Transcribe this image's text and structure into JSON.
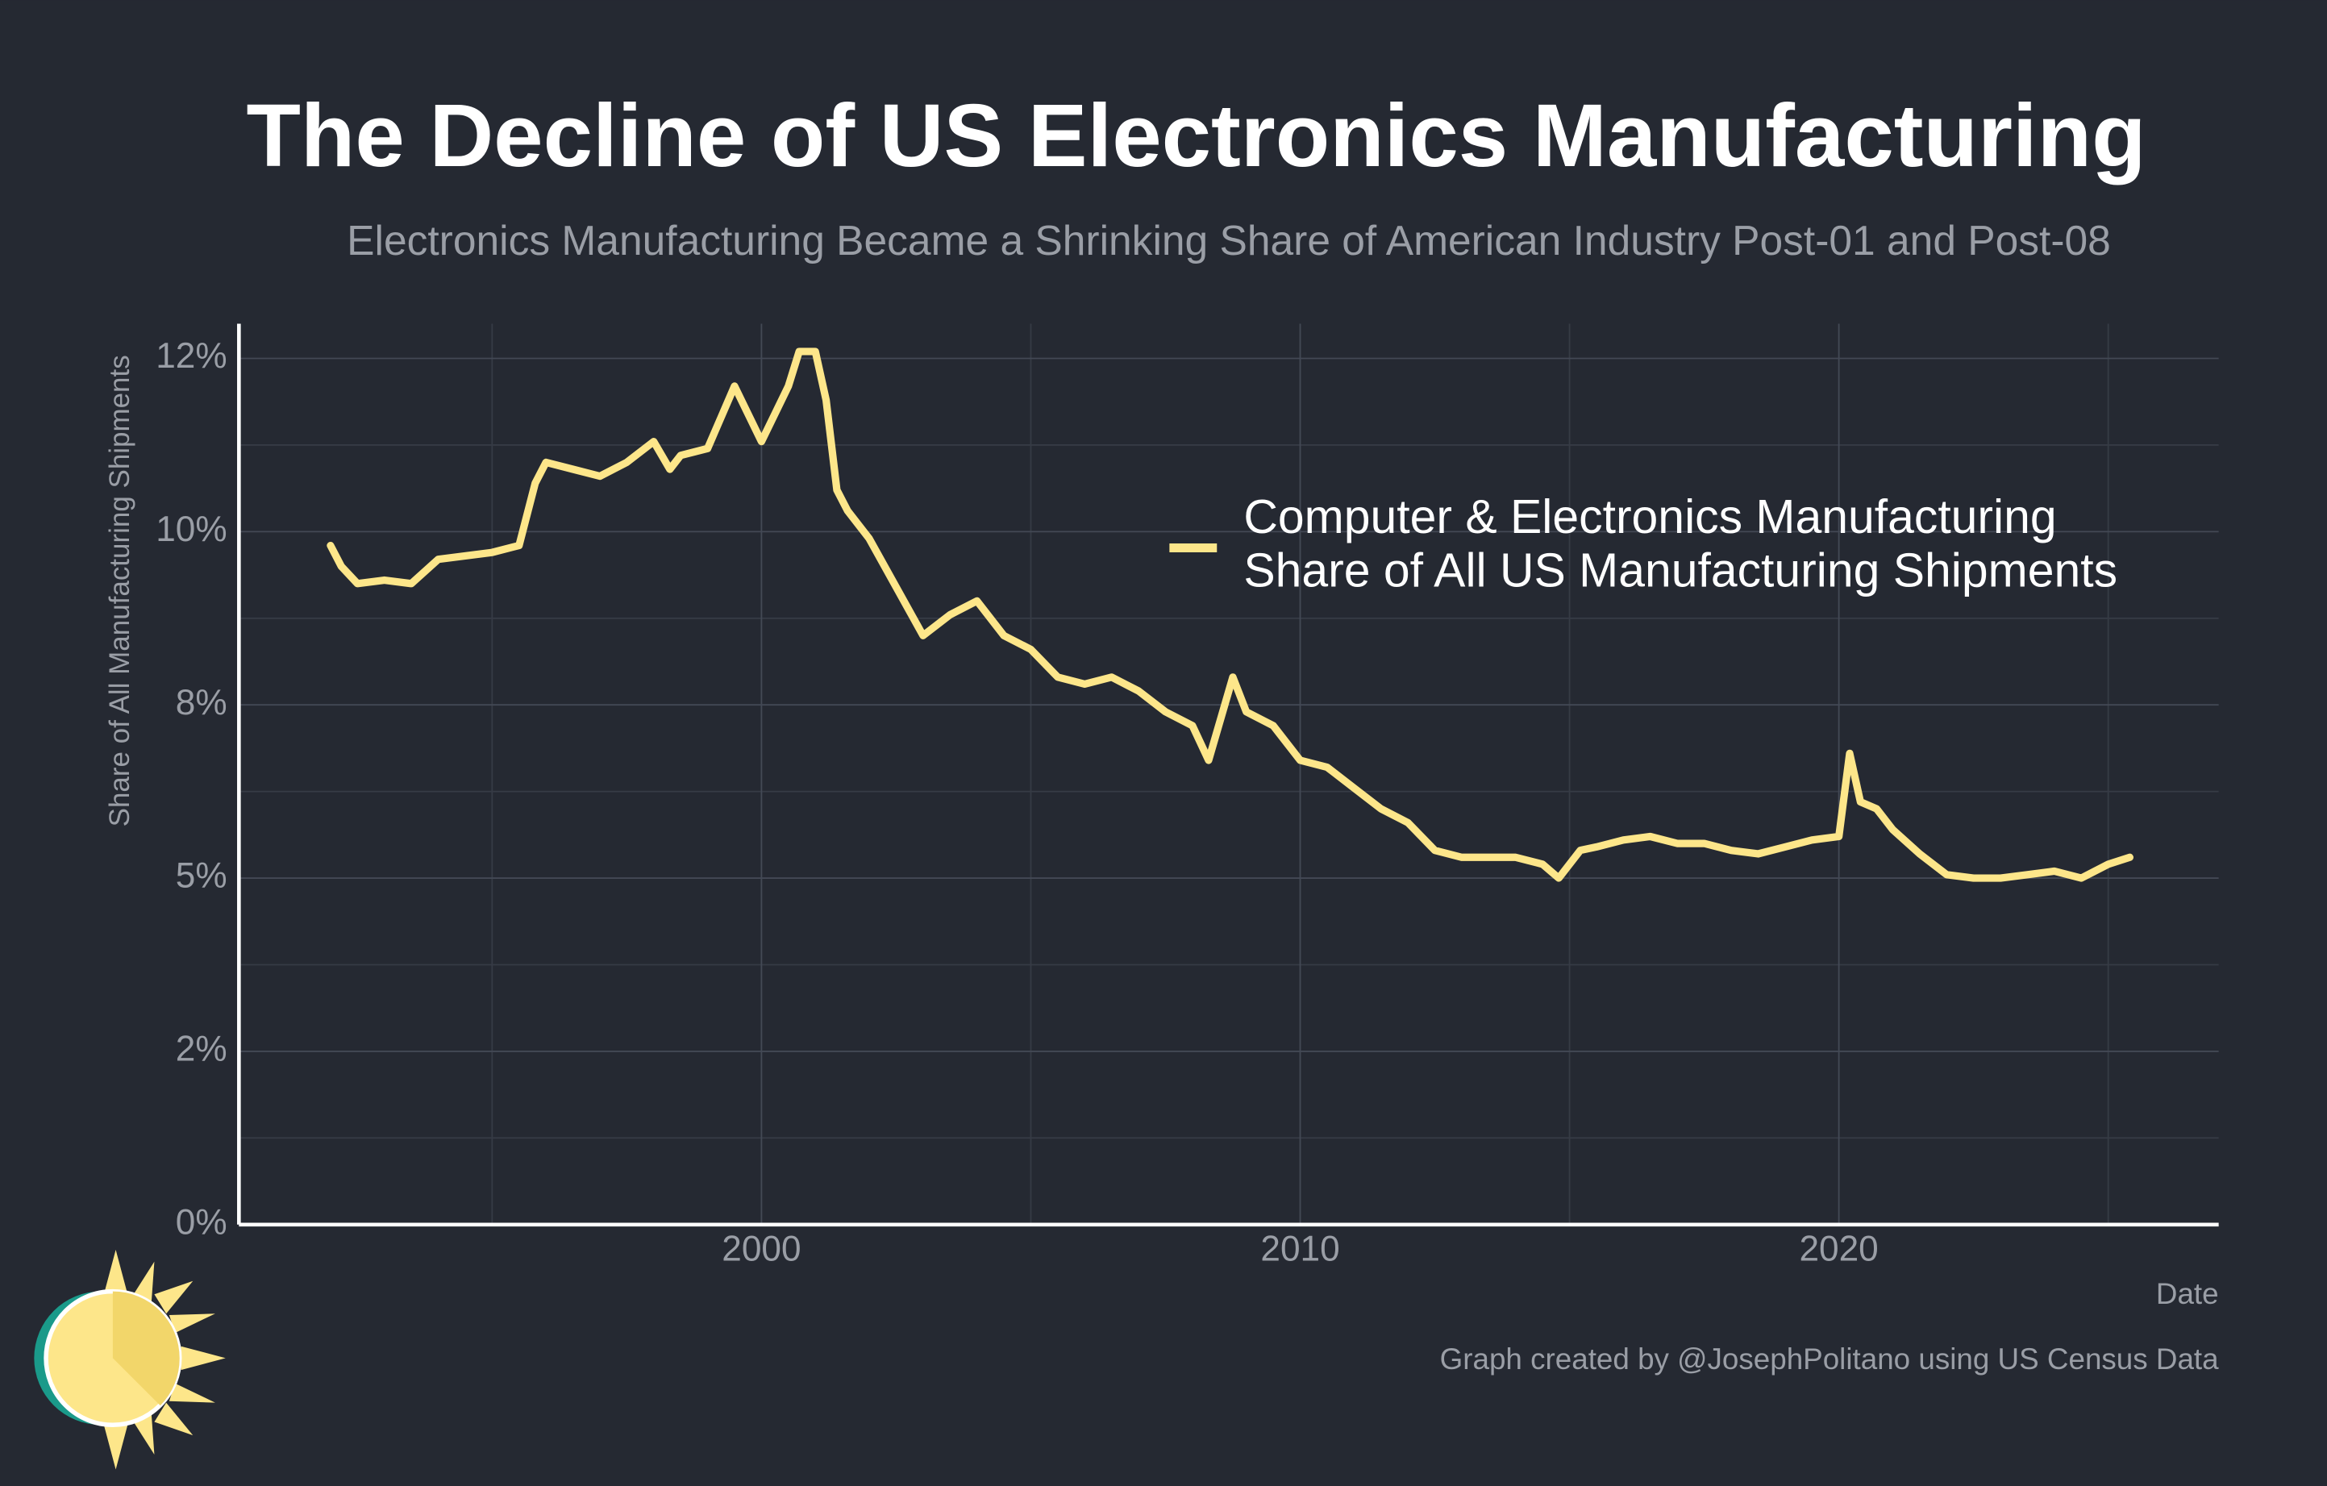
{
  "chart_data": {
    "type": "line",
    "title": "The Decline of US Electronics Manufacturing",
    "subtitle": "Electronics Manufacturing Became a Shrinking Share of American Industry Post-01 and Post-08",
    "x_label": "Date",
    "y_label": "Share of All Manufacturing Shipments",
    "caption": "Graph created by @JosephPolitano using US Census Data",
    "xlim": [
      1990.3,
      2027.05
    ],
    "xticks": [
      2000,
      2010,
      2020
    ],
    "ylim": [
      0,
      13
    ],
    "yticks": [
      {
        "value": 0,
        "label": "0%"
      },
      {
        "value": 2.5,
        "label": "2%"
      },
      {
        "value": 5,
        "label": "5%"
      },
      {
        "value": 7.5,
        "label": "8%"
      },
      {
        "value": 10,
        "label": "10%"
      },
      {
        "value": 12.5,
        "label": "12%"
      }
    ],
    "grid": true,
    "legend_position": "right",
    "x": [
      1992.0,
      1992.2,
      1992.5,
      1993.0,
      1993.5,
      1994.0,
      1994.5,
      1995.0,
      1995.5,
      1995.8,
      1996.0,
      1996.5,
      1997.0,
      1997.5,
      1998.0,
      1998.3,
      1998.5,
      1999.0,
      1999.5,
      2000.0,
      2000.5,
      2000.7,
      2001.0,
      2001.2,
      2001.4,
      2001.6,
      2002.0,
      2002.5,
      2003.0,
      2003.5,
      2004.0,
      2004.5,
      2005.0,
      2005.5,
      2006.0,
      2006.5,
      2007.0,
      2007.5,
      2008.0,
      2008.3,
      2008.75,
      2009.0,
      2009.5,
      2010.0,
      2010.5,
      2011.0,
      2011.5,
      2012.0,
      2012.5,
      2013.0,
      2013.5,
      2014.0,
      2014.5,
      2014.8,
      2015.2,
      2015.5,
      2016.0,
      2016.5,
      2017.0,
      2017.5,
      2018.0,
      2018.5,
      2019.0,
      2019.5,
      2020.0,
      2020.2,
      2020.4,
      2020.7,
      2021.0,
      2021.5,
      2022.0,
      2022.5,
      2023.0,
      2023.5,
      2024.0,
      2024.5,
      2025.0,
      2025.4
    ],
    "series": [
      {
        "name": "Computer & Electronics Manufacturing Share of All US Manufacturing Shipments",
        "color": "#fde68a",
        "values": [
          9.8,
          9.5,
          9.25,
          9.3,
          9.25,
          9.6,
          9.65,
          9.7,
          9.8,
          10.7,
          11.0,
          10.9,
          10.8,
          11.0,
          11.3,
          10.9,
          11.1,
          11.2,
          12.1,
          11.3,
          12.1,
          12.6,
          12.6,
          11.9,
          10.6,
          10.3,
          9.9,
          9.2,
          8.5,
          8.8,
          9.0,
          8.5,
          8.3,
          7.9,
          7.8,
          7.9,
          7.7,
          7.4,
          7.2,
          6.7,
          7.9,
          7.4,
          7.2,
          6.7,
          6.6,
          6.3,
          6.0,
          5.8,
          5.4,
          5.3,
          5.3,
          5.3,
          5.2,
          5.0,
          5.4,
          5.45,
          5.55,
          5.6,
          5.5,
          5.5,
          5.4,
          5.35,
          5.45,
          5.55,
          5.6,
          6.8,
          6.1,
          6.0,
          5.7,
          5.35,
          5.05,
          5.0,
          5.0,
          5.05,
          5.1,
          5.0,
          5.2,
          5.3
        ]
      }
    ]
  }
}
